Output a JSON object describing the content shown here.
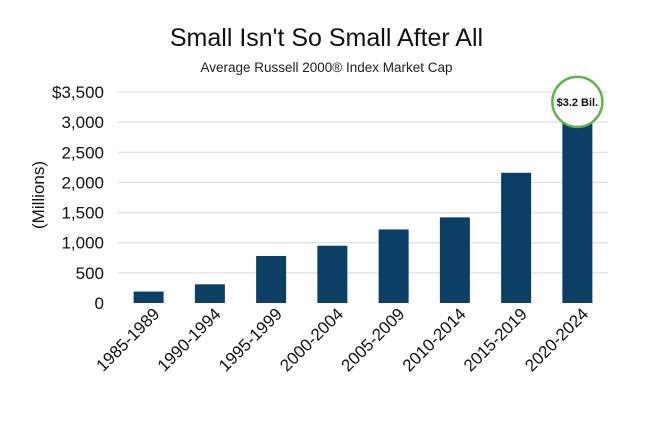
{
  "chart_data": {
    "type": "bar",
    "title": "Small Isn't So Small After All",
    "subtitle": "Average Russell 2000® Index Market Cap",
    "ylabel": "(Millions)",
    "xlabel": "",
    "categories": [
      "1985-1989",
      "1990-1994",
      "1995-1999",
      "2000-2004",
      "2005-2009",
      "2010-2014",
      "2015-2019",
      "2020-2024"
    ],
    "values": [
      190,
      310,
      780,
      950,
      1220,
      1420,
      2160,
      3170
    ],
    "ylim": [
      0,
      3500
    ],
    "yticks": [
      0,
      500,
      1000,
      1500,
      2000,
      2500,
      3000,
      3500
    ],
    "ytick_labels": [
      "0",
      "500",
      "1,000",
      "1,500",
      "2,000",
      "2,500",
      "3,000",
      "$3,500"
    ],
    "grid": true,
    "bar_color": "#0b3f66",
    "annotation": {
      "category": "2020-2024",
      "text": "$3.2 Bil.",
      "circle_color": "#5bb548"
    }
  }
}
